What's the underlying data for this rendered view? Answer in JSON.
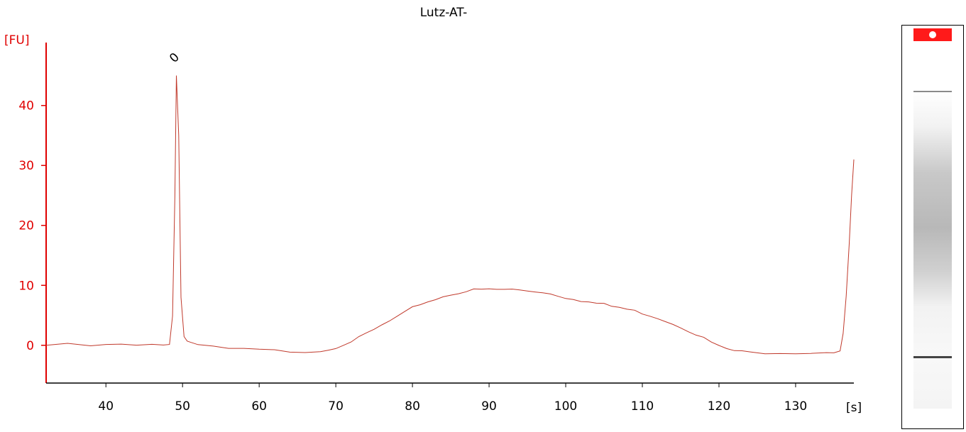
{
  "chart_data": {
    "type": "line",
    "title": "Lutz-AT-",
    "xlabel": "",
    "ylabel": "",
    "x_unit": "[s]",
    "y_unit": "[FU]",
    "xlim": [
      32.2,
      137.6
    ],
    "ylim": [
      -6.3,
      50.5
    ],
    "x_ticks": [
      40,
      50,
      60,
      70,
      80,
      90,
      100,
      110,
      120,
      130
    ],
    "y_ticks": [
      0,
      10,
      20,
      30,
      40
    ],
    "grid": false,
    "colors": {
      "axis": "#e00000",
      "trace": "#c0392b",
      "text": "#000000"
    },
    "peak_labels": [
      {
        "x": 49.3,
        "y": 47.5,
        "text": "0"
      }
    ],
    "series": [
      {
        "x": [
          32.2,
          35,
          38,
          40,
          42,
          44,
          46,
          47.5,
          48.3,
          48.7,
          49.0,
          49.2,
          49.5,
          49.8,
          50.2,
          50.6,
          51,
          52,
          54,
          56,
          58,
          60,
          62,
          64,
          66,
          68,
          69,
          70,
          71,
          72,
          73,
          74,
          75,
          76,
          77,
          78,
          79,
          80,
          81,
          82,
          83,
          84,
          85,
          86,
          87,
          88,
          89,
          90,
          91,
          92,
          93,
          94,
          95,
          96,
          97,
          98,
          99,
          100,
          101,
          102,
          103,
          104,
          105,
          106,
          107,
          108,
          109,
          110,
          111,
          112,
          113,
          114,
          115,
          116,
          117,
          118,
          119,
          120,
          121,
          122,
          123,
          124,
          126,
          128,
          130,
          132,
          134,
          135,
          135.8,
          136.2,
          136.6,
          137.0,
          137.3,
          137.6
        ],
        "y": [
          0,
          0.1,
          -0.1,
          0,
          0.1,
          -0.1,
          0,
          0,
          0.3,
          5,
          25,
          45,
          35,
          8,
          1.5,
          0.6,
          0.3,
          0,
          -0.3,
          -0.6,
          -0.7,
          -0.8,
          -0.9,
          -1.0,
          -1.0,
          -0.9,
          -0.7,
          -0.3,
          0.2,
          0.7,
          1.2,
          1.9,
          2.6,
          3.3,
          4.0,
          4.7,
          5.4,
          6.2,
          6.9,
          7.3,
          7.7,
          8.1,
          8.5,
          8.8,
          9.0,
          9.2,
          9.3,
          9.3,
          9.3,
          9.3,
          9.3,
          9.2,
          9.1,
          9.0,
          8.9,
          8.6,
          8.3,
          8.0,
          7.8,
          7.5,
          7.2,
          7.0,
          6.8,
          6.5,
          6.3,
          6.0,
          5.7,
          5.4,
          5.0,
          4.6,
          4.1,
          3.6,
          3.1,
          2.5,
          1.9,
          1.2,
          0.5,
          -0.2,
          -0.6,
          -0.9,
          -1.1,
          -1.2,
          -1.2,
          -1.2,
          -1.2,
          -1.2,
          -1.1,
          -1.1,
          -0.8,
          2,
          8,
          17,
          25,
          31
        ]
      }
    ]
  }
}
